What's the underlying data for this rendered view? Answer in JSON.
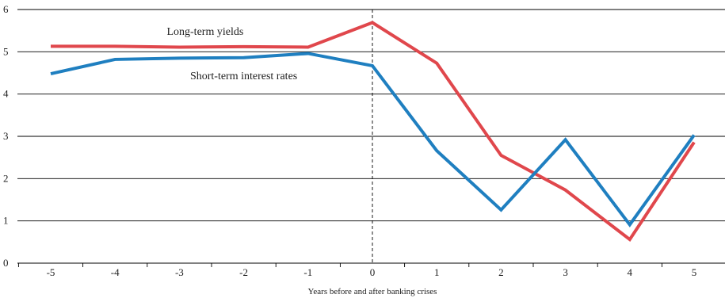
{
  "chart_data": {
    "type": "line",
    "title": "",
    "xlabel": "Years before and after banking crises",
    "ylabel": "",
    "x": [
      -5,
      -4,
      -3,
      -2,
      -1,
      0,
      1,
      2,
      3,
      4,
      5
    ],
    "x_tick_labels": [
      "-5",
      "-4",
      "-3",
      "-2",
      "-1",
      "0",
      "1",
      "2",
      "3",
      "4",
      "5"
    ],
    "ylim": [
      0,
      6
    ],
    "y_ticks": [
      0,
      1,
      2,
      3,
      4,
      5,
      6
    ],
    "y_tick_labels": [
      "0",
      "1",
      "2",
      "3",
      "4",
      "5",
      "6"
    ],
    "grid": "horizontal",
    "reference_line": {
      "x": 0,
      "style": "dashed"
    },
    "series": [
      {
        "name": "Long-term yields",
        "color": "#e0474c",
        "values": [
          5.13,
          5.13,
          5.11,
          5.12,
          5.11,
          5.69,
          4.73,
          2.55,
          1.73,
          0.56,
          2.86
        ]
      },
      {
        "name": "Short-term interest rates",
        "color": "#1f7fc0",
        "values": [
          4.48,
          4.82,
          4.85,
          4.86,
          4.96,
          4.67,
          2.66,
          1.26,
          2.92,
          0.91,
          3.03
        ]
      }
    ],
    "annotations": [
      {
        "text": "Long-term yields",
        "x": -2.6,
        "y": 5.4
      },
      {
        "text": "Short-term interest rates",
        "x": -2.0,
        "y": 4.35
      }
    ]
  }
}
